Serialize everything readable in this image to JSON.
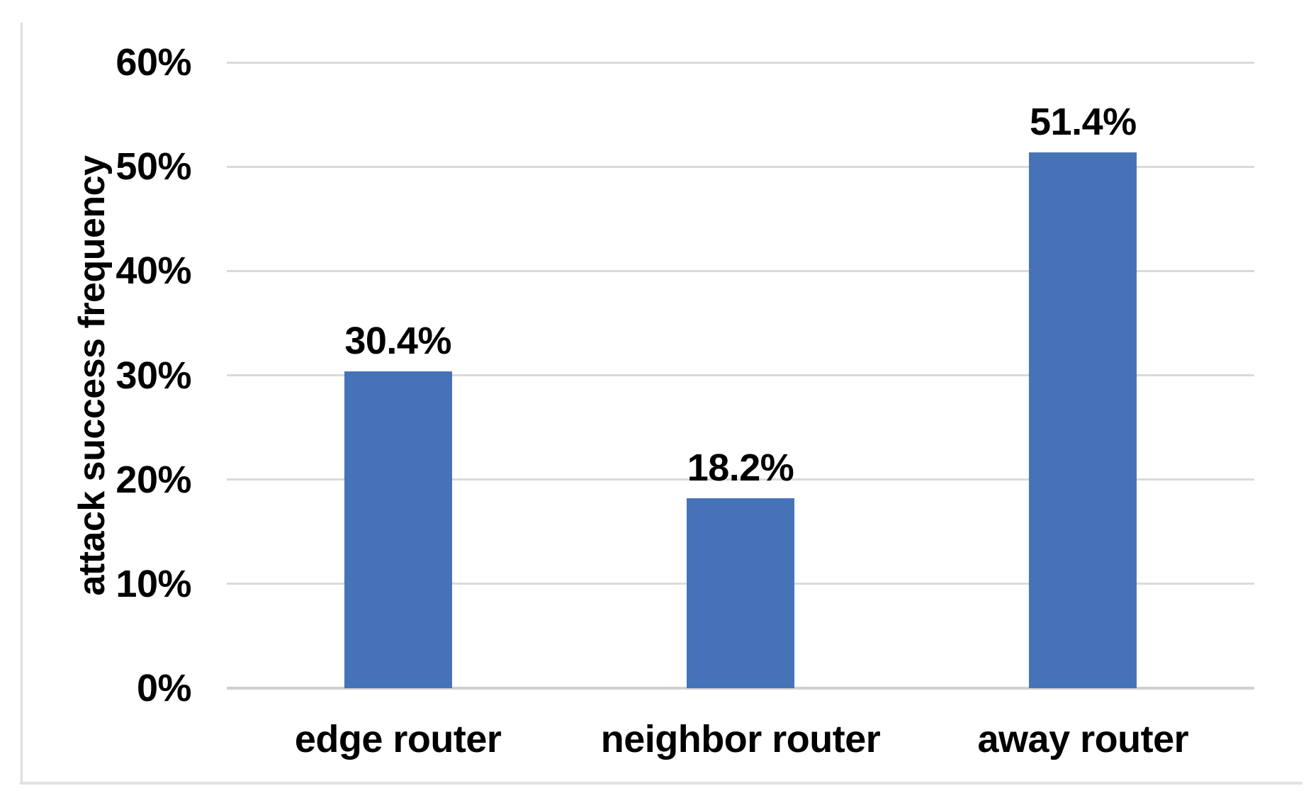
{
  "chart_data": {
    "type": "bar",
    "title": "",
    "xlabel": "",
    "ylabel": "attack success frequency",
    "categories": [
      "edge router",
      "neighbor router",
      "away router"
    ],
    "values": [
      30.4,
      18.2,
      51.4
    ],
    "data_labels": [
      "30.4%",
      "18.2%",
      "51.4%"
    ],
    "ylim": [
      0,
      60
    ],
    "yticks": [
      0,
      10,
      20,
      30,
      40,
      50,
      60
    ],
    "ytick_labels": [
      "0%",
      "10%",
      "20%",
      "30%",
      "40%",
      "50%",
      "60%"
    ],
    "grid": true,
    "legend": false,
    "bar_color": "#4673B8",
    "gridline_color": "#DADADA",
    "axis_line_color": "#D0D0D0",
    "frame_border_color": "#E1E1E1",
    "text_color": "#000000",
    "background_color": "#FFFFFF"
  }
}
